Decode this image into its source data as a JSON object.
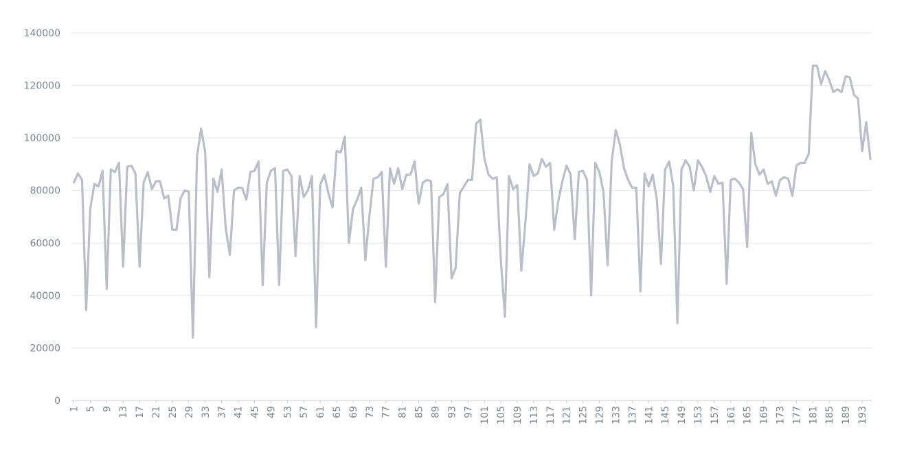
{
  "chart_data": {
    "type": "line",
    "title": "",
    "xlabel": "",
    "ylabel": "",
    "ylim": [
      0,
      140000
    ],
    "yticks": [
      0,
      20000,
      40000,
      60000,
      80000,
      100000,
      120000,
      140000
    ],
    "ytick_labels": [
      "0",
      "20000",
      "40000",
      "60000",
      "80000",
      "100000",
      "120000",
      "140000"
    ],
    "grid": true,
    "legend": "none",
    "x_tick_step": 4,
    "colors": {
      "line": "#b9bec8",
      "grid": "#e2e4e8",
      "axis": "#c8ccd2",
      "tick_text": "#7b8591"
    },
    "series": [
      {
        "values": [
          83000,
          86500,
          84000,
          34500,
          73000,
          82500,
          81500,
          87500,
          42500,
          88000,
          87000,
          90500,
          51000,
          89000,
          89500,
          86500,
          51000,
          83000,
          87000,
          80500,
          83500,
          83500,
          77000,
          78000,
          65000,
          65000,
          77000,
          80000,
          79500,
          24000,
          93000,
          103500,
          94500,
          47000,
          84500,
          79500,
          88000,
          65500,
          55500,
          80000,
          81000,
          81000,
          76500,
          87000,
          87500,
          91000,
          44000,
          83000,
          87500,
          88500,
          44000,
          87500,
          88000,
          85500,
          55000,
          85500,
          77500,
          80000,
          85500,
          28000,
          82000,
          86000,
          79000,
          73500,
          95000,
          94500,
          100500,
          60000,
          73000,
          76500,
          81000,
          53500,
          70500,
          84500,
          85000,
          87000,
          51000,
          88500,
          82500,
          88500,
          80500,
          86000,
          86000,
          91000,
          75000,
          83000,
          84000,
          83500,
          37500,
          77500,
          78500,
          82500,
          46500,
          50500,
          79000,
          81500,
          84000,
          84000,
          105500,
          107000,
          92000,
          86000,
          84500,
          85000,
          53500,
          32000,
          85500,
          80500,
          82000,
          49500,
          68000,
          90000,
          85500,
          86500,
          92000,
          89000,
          90500,
          65000,
          76000,
          83500,
          89500,
          86000,
          61500,
          87000,
          87500,
          84000,
          40000,
          90500,
          87000,
          79500,
          51500,
          91000,
          103000,
          97500,
          88500,
          84000,
          81000,
          81000,
          41500,
          86500,
          81500,
          86000,
          76500,
          52000,
          88000,
          91000,
          81500,
          29500,
          88000,
          91500,
          89000,
          80000,
          91500,
          89000,
          85500,
          79500,
          85500,
          82500,
          83000,
          44500,
          84000,
          84500,
          83000,
          80500,
          58500,
          102000,
          90000,
          86000,
          88000,
          82500,
          83500,
          78000,
          84000,
          85000,
          84500,
          78000,
          89500,
          90500,
          90500,
          94000,
          127500,
          127500,
          120500,
          125500,
          122000,
          117500,
          118500,
          117500,
          123500,
          123000,
          116500,
          115000,
          95000,
          106000,
          92000
        ]
      }
    ]
  }
}
